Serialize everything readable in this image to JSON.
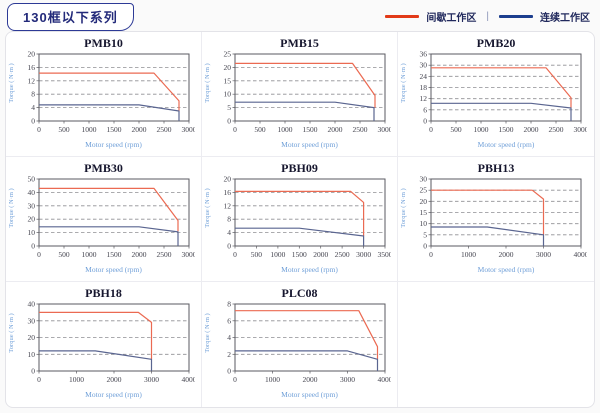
{
  "header": {
    "title": "130框以下系列",
    "legend": [
      {
        "label": "间歇工作区",
        "color": "#e23a18"
      },
      {
        "label": "连续工作区",
        "color": "#1c3e8e"
      }
    ],
    "legend_separator": "|"
  },
  "colors": {
    "intermittent_line": "#ec6putt",
    "intermittent": "#eb6a52",
    "continuous": "#5a6590",
    "grid_line": "#8f8f94",
    "plot_border": "#5a5a60",
    "tick_text": "#43434e",
    "axis_label_text": "#6f9fd8",
    "chart_title_text": "#16162e"
  },
  "chart_data": [
    {
      "name": "PMB10",
      "type": "line",
      "xlabel": "Motor speed (rpm)",
      "ylabel": "Torque ( N·m )",
      "xlim": [
        0,
        3000
      ],
      "ylim": [
        0,
        20
      ],
      "xticks": [
        0,
        500,
        1000,
        1500,
        2000,
        2500,
        3000
      ],
      "yticks": [
        0,
        4,
        8,
        12,
        16,
        20
      ],
      "series": [
        {
          "name": "间歇工作区",
          "color_key": "intermittent",
          "points": [
            [
              0,
              14.3
            ],
            [
              2300,
              14.3
            ],
            [
              2800,
              6
            ],
            [
              2800,
              3
            ]
          ]
        },
        {
          "name": "连续工作区",
          "color_key": "continuous",
          "points": [
            [
              0,
              4.8
            ],
            [
              2000,
              4.8
            ],
            [
              2800,
              3
            ],
            [
              2800,
              0
            ]
          ]
        }
      ]
    },
    {
      "name": "PMB15",
      "type": "line",
      "xlabel": "Motor speed (rpm)",
      "ylabel": "Torque ( N·m )",
      "xlim": [
        0,
        3000
      ],
      "ylim": [
        0,
        25
      ],
      "xticks": [
        0,
        500,
        1000,
        1500,
        2000,
        2500,
        3000
      ],
      "yticks": [
        0,
        5,
        10,
        15,
        20,
        25
      ],
      "series": [
        {
          "name": "间歇工作区",
          "color_key": "intermittent",
          "points": [
            [
              0,
              21.5
            ],
            [
              2350,
              21.5
            ],
            [
              2800,
              9.5
            ],
            [
              2800,
              5
            ]
          ]
        },
        {
          "name": "连续工作区",
          "color_key": "continuous",
          "points": [
            [
              0,
              7
            ],
            [
              2000,
              7
            ],
            [
              2780,
              5
            ],
            [
              2780,
              0
            ]
          ]
        }
      ]
    },
    {
      "name": "PMB20",
      "type": "line",
      "xlabel": "Motor speed (rpm)",
      "ylabel": "Torque ( N·m )",
      "xlim": [
        0,
        3000
      ],
      "ylim": [
        0,
        36
      ],
      "xticks": [
        0,
        500,
        1000,
        1500,
        2000,
        2500,
        3000
      ],
      "yticks": [
        0,
        6,
        12,
        18,
        24,
        30,
        36
      ],
      "series": [
        {
          "name": "间歇工作区",
          "color_key": "intermittent",
          "points": [
            [
              0,
              28.6
            ],
            [
              2300,
              28.6
            ],
            [
              2800,
              12.5
            ],
            [
              2800,
              7
            ]
          ]
        },
        {
          "name": "连续工作区",
          "color_key": "continuous",
          "points": [
            [
              0,
              9.5
            ],
            [
              2000,
              9.5
            ],
            [
              2800,
              7
            ],
            [
              2800,
              0
            ]
          ]
        }
      ]
    },
    {
      "name": "PMB30",
      "type": "line",
      "xlabel": "Motor speed (rpm)",
      "ylabel": "Torque ( N·m )",
      "xlim": [
        0,
        3000
      ],
      "ylim": [
        0,
        50
      ],
      "xticks": [
        0,
        500,
        1000,
        1500,
        2000,
        2500,
        3000
      ],
      "yticks": [
        0,
        10,
        20,
        30,
        40,
        50
      ],
      "series": [
        {
          "name": "间歇工作区",
          "color_key": "intermittent",
          "points": [
            [
              0,
              43
            ],
            [
              2300,
              43
            ],
            [
              2780,
              19
            ],
            [
              2780,
              11
            ]
          ]
        },
        {
          "name": "连续工作区",
          "color_key": "continuous",
          "points": [
            [
              0,
              14.3
            ],
            [
              2000,
              14.3
            ],
            [
              2780,
              10.5
            ],
            [
              2780,
              0
            ]
          ]
        }
      ]
    },
    {
      "name": "PBH09",
      "type": "line",
      "xlabel": "Motor speed (rpm)",
      "ylabel": "Torque ( N·m )",
      "xlim": [
        0,
        3500
      ],
      "ylim": [
        0,
        20
      ],
      "xticks": [
        0,
        500,
        1000,
        1500,
        2000,
        2500,
        3000,
        3500
      ],
      "yticks": [
        0,
        4,
        8,
        12,
        16,
        20
      ],
      "series": [
        {
          "name": "间歇工作区",
          "color_key": "intermittent",
          "points": [
            [
              0,
              16.3
            ],
            [
              2700,
              16.3
            ],
            [
              3000,
              13
            ],
            [
              3000,
              3
            ]
          ]
        },
        {
          "name": "连续工作区",
          "color_key": "continuous",
          "points": [
            [
              0,
              5.3
            ],
            [
              1500,
              5.3
            ],
            [
              3000,
              3
            ],
            [
              3000,
              0
            ]
          ]
        }
      ]
    },
    {
      "name": "PBH13",
      "type": "line",
      "xlabel": "Motor speed (rpm)",
      "ylabel": "Torque ( N·m )",
      "xlim": [
        0,
        4000
      ],
      "ylim": [
        0,
        30
      ],
      "xticks": [
        0,
        1000,
        2000,
        3000,
        4000
      ],
      "yticks": [
        0,
        5,
        10,
        15,
        20,
        25,
        30
      ],
      "series": [
        {
          "name": "间歇工作区",
          "color_key": "intermittent",
          "points": [
            [
              0,
              25
            ],
            [
              2700,
              25
            ],
            [
              3000,
              21
            ],
            [
              3000,
              5
            ]
          ]
        },
        {
          "name": "连续工作区",
          "color_key": "continuous",
          "points": [
            [
              0,
              8.5
            ],
            [
              1500,
              8.5
            ],
            [
              3000,
              5
            ],
            [
              3000,
              0
            ]
          ]
        }
      ]
    },
    {
      "name": "PBH18",
      "type": "line",
      "xlabel": "Motor speed (rpm)",
      "ylabel": "Torque ( N·m )",
      "xlim": [
        0,
        4000
      ],
      "ylim": [
        0,
        40
      ],
      "xticks": [
        0,
        1000,
        2000,
        3000,
        4000
      ],
      "yticks": [
        0,
        10,
        20,
        30,
        40
      ],
      "series": [
        {
          "name": "间歇工作区",
          "color_key": "intermittent",
          "points": [
            [
              0,
              35
            ],
            [
              2650,
              35
            ],
            [
              3000,
              29
            ],
            [
              3000,
              7
            ]
          ]
        },
        {
          "name": "连续工作区",
          "color_key": "continuous",
          "points": [
            [
              0,
              12
            ],
            [
              1500,
              12
            ],
            [
              3000,
              7
            ],
            [
              3000,
              0
            ]
          ]
        }
      ]
    },
    {
      "name": "PLC08",
      "type": "line",
      "xlabel": "Motor speed (rpm)",
      "ylabel": "Torque ( N·m )",
      "xlim": [
        0,
        4000
      ],
      "ylim": [
        0,
        8
      ],
      "xticks": [
        0,
        1000,
        2000,
        3000,
        4000
      ],
      "yticks": [
        0,
        2,
        4,
        6,
        8
      ],
      "series": [
        {
          "name": "间歇工作区",
          "color_key": "intermittent",
          "points": [
            [
              0,
              7.2
            ],
            [
              3300,
              7.2
            ],
            [
              3800,
              2.9
            ],
            [
              3800,
              1.4
            ]
          ]
        },
        {
          "name": "连续工作区",
          "color_key": "continuous",
          "points": [
            [
              0,
              2.4
            ],
            [
              3000,
              2.4
            ],
            [
              3800,
              1.4
            ],
            [
              3800,
              0
            ]
          ]
        }
      ]
    }
  ]
}
